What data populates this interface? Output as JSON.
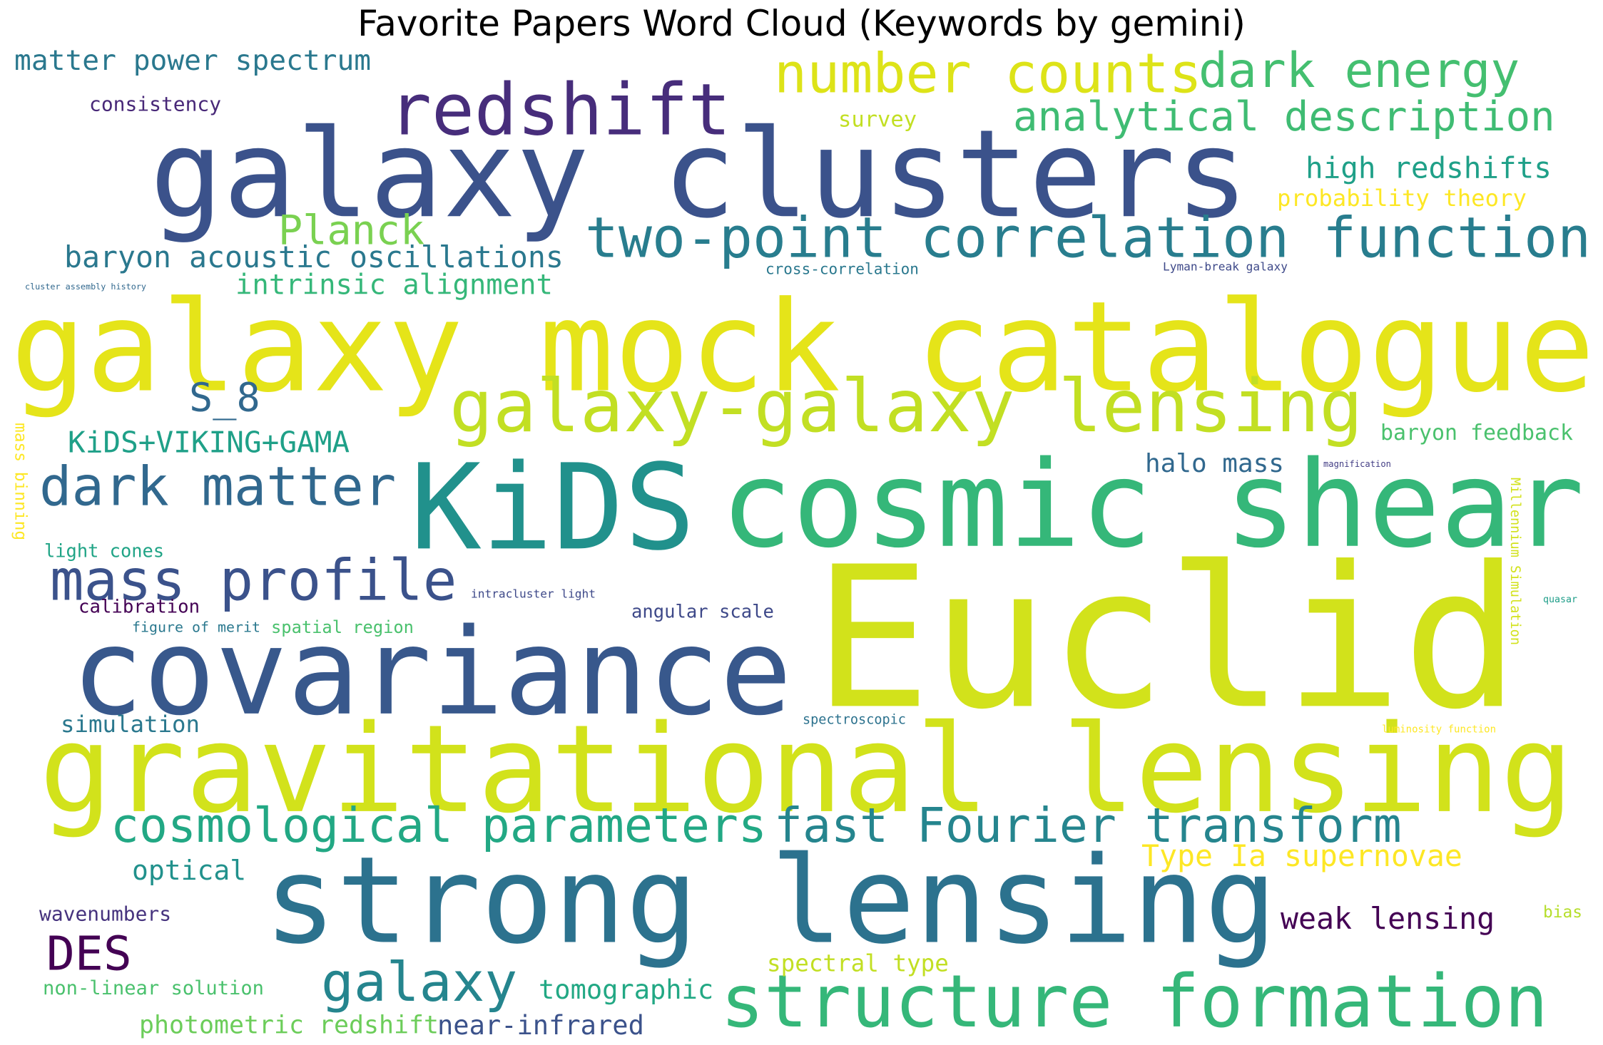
{
  "title": "Favorite Papers Word Cloud (Keywords by gemini)",
  "words": [
    {
      "text": "Euclid",
      "color": "#d2e21b"
    },
    {
      "text": "gravitational lensing",
      "color": "#d2e21b"
    },
    {
      "text": "galaxy mock catalogue",
      "color": "#e5e419"
    },
    {
      "text": "galaxy clusters",
      "color": "#3b528b"
    },
    {
      "text": "covariance",
      "color": "#38588c"
    },
    {
      "text": "strong lensing",
      "color": "#2c728e"
    },
    {
      "text": "KiDS",
      "color": "#21918c"
    },
    {
      "text": "cosmic shear",
      "color": "#35b779"
    },
    {
      "text": "structure formation",
      "color": "#35b779"
    },
    {
      "text": "galaxy-galaxy lensing",
      "color": "#c2df23"
    },
    {
      "text": "redshift",
      "color": "#472d7b"
    },
    {
      "text": "two-point correlation function",
      "color": "#287d8e"
    },
    {
      "text": "number counts",
      "color": "#dde318"
    },
    {
      "text": "dark energy",
      "color": "#44bf70"
    },
    {
      "text": "analytical description",
      "color": "#3fbc73"
    },
    {
      "text": "mass profile",
      "color": "#3b528b"
    },
    {
      "text": "dark matter",
      "color": "#31688e"
    },
    {
      "text": "fast Fourier transform",
      "color": "#25858e"
    },
    {
      "text": "cosmological parameters",
      "color": "#22a884"
    },
    {
      "text": "galaxy",
      "color": "#25858e"
    },
    {
      "text": "Planck",
      "color": "#7ad151"
    },
    {
      "text": "DES",
      "color": "#440154"
    },
    {
      "text": "S_8",
      "color": "#31688e"
    },
    {
      "text": "matter power spectrum",
      "color": "#2a788e"
    },
    {
      "text": "baryon acoustic oscillations",
      "color": "#2a788e"
    },
    {
      "text": "intrinsic alignment",
      "color": "#35b779"
    },
    {
      "text": "KiDS+VIKING+GAMA",
      "color": "#1fa088"
    },
    {
      "text": "high redshifts",
      "color": "#1fa088"
    },
    {
      "text": "probability theory",
      "color": "#fde725"
    },
    {
      "text": "consistency",
      "color": "#482878"
    },
    {
      "text": "survey",
      "color": "#c2df23"
    },
    {
      "text": "halo mass",
      "color": "#31688e"
    },
    {
      "text": "baryon feedback",
      "color": "#4ac16d"
    },
    {
      "text": "Type Ia supernovae",
      "color": "#fde725"
    },
    {
      "text": "weak lensing",
      "color": "#440154"
    },
    {
      "text": "optical",
      "color": "#21918c"
    },
    {
      "text": "simulation",
      "color": "#2a788e"
    },
    {
      "text": "wavenumbers",
      "color": "#46337e"
    },
    {
      "text": "tomographic",
      "color": "#22a884"
    },
    {
      "text": "photometric redshift",
      "color": "#6ccd5a"
    },
    {
      "text": "near-infrared",
      "color": "#3b528b"
    },
    {
      "text": "non-linear solution",
      "color": "#4ac16d"
    },
    {
      "text": "spectral type",
      "color": "#c2df23"
    },
    {
      "text": "angular scale",
      "color": "#3e4989"
    },
    {
      "text": "calibration",
      "color": "#440154"
    },
    {
      "text": "light cones",
      "color": "#20a486"
    },
    {
      "text": "figure of merit",
      "color": "#2a788e"
    },
    {
      "text": "spatial region",
      "color": "#4ac16d"
    },
    {
      "text": "intracluster light",
      "color": "#3e4989"
    },
    {
      "text": "spectroscopic",
      "color": "#2c728e"
    },
    {
      "text": "cross-correlation",
      "color": "#2a788e"
    },
    {
      "text": "Lyman-break galaxy",
      "color": "#3e4989"
    },
    {
      "text": "cluster assembly history",
      "color": "#31688e"
    },
    {
      "text": "luminosity function",
      "color": "#fde725"
    },
    {
      "text": "magnification",
      "color": "#433e85"
    },
    {
      "text": "quasar",
      "color": "#1f9e89"
    },
    {
      "text": "bias",
      "color": "#b5de2b"
    },
    {
      "text": "mass binning",
      "color": "#fde725"
    },
    {
      "text": "Millennium Simulation",
      "color": "#d2e21b"
    }
  ]
}
